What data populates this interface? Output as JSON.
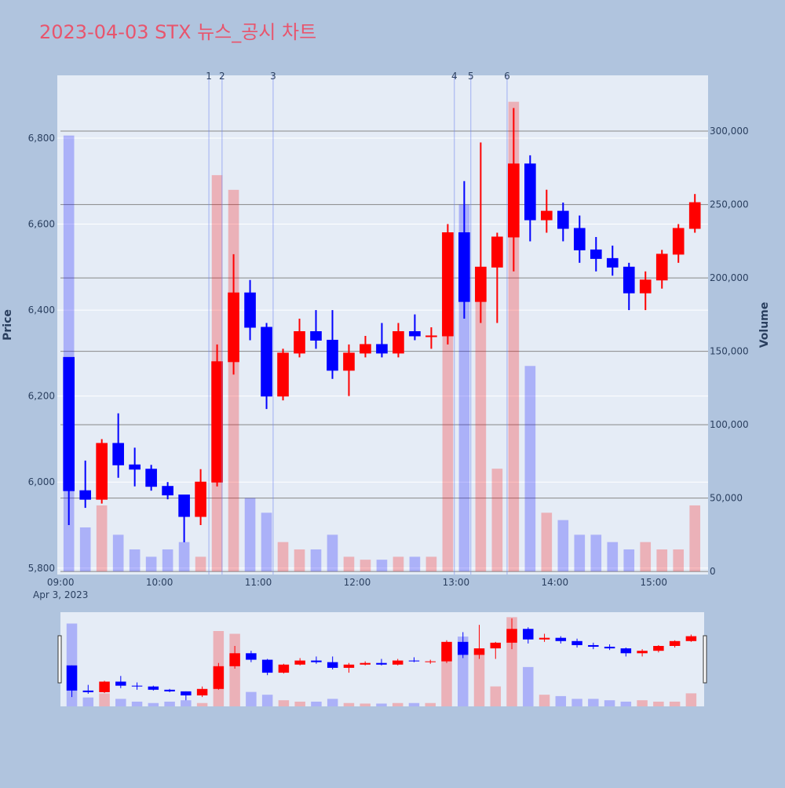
{
  "chart_data": {
    "type": "candlestick",
    "title": "2023-04-03 STX 뉴스_공시 차트",
    "y_title": "Price",
    "y2_title": "Volume",
    "date_label": "Apr 3, 2023",
    "x": [
      "09:00",
      "09:10",
      "09:20",
      "09:30",
      "09:40",
      "09:50",
      "10:00",
      "10:10",
      "10:20",
      "10:30",
      "10:40",
      "10:50",
      "11:00",
      "11:10",
      "11:20",
      "11:30",
      "11:40",
      "11:50",
      "12:00",
      "12:10",
      "12:20",
      "12:30",
      "12:40",
      "12:50",
      "13:00",
      "13:10",
      "13:20",
      "13:30",
      "13:40",
      "13:50",
      "14:00",
      "14:10",
      "14:20",
      "14:30",
      "14:40",
      "14:50",
      "15:00",
      "15:10",
      "15:20"
    ],
    "open": [
      6290,
      5980,
      5960,
      6090,
      6040,
      6030,
      5990,
      5970,
      5920,
      6000,
      6280,
      6440,
      6360,
      6200,
      6300,
      6350,
      6330,
      6260,
      6300,
      6320,
      6300,
      6350,
      6340,
      6340,
      6580,
      6420,
      6500,
      6570,
      6740,
      6610,
      6630,
      6590,
      6540,
      6520,
      6500,
      6440,
      6470,
      6530,
      6590
    ],
    "high": [
      6290,
      6050,
      6100,
      6160,
      6080,
      6040,
      6000,
      5970,
      6030,
      6320,
      6530,
      6470,
      6370,
      6310,
      6380,
      6400,
      6400,
      6320,
      6340,
      6370,
      6370,
      6390,
      6360,
      6600,
      6700,
      6790,
      6580,
      6870,
      6760,
      6680,
      6650,
      6620,
      6570,
      6550,
      6510,
      6490,
      6540,
      6600,
      6670
    ],
    "low": [
      5900,
      5940,
      5950,
      6010,
      5990,
      5980,
      5960,
      5860,
      5900,
      5990,
      6250,
      6330,
      6170,
      6190,
      6290,
      6310,
      6240,
      6200,
      6290,
      6290,
      6290,
      6330,
      6310,
      6320,
      6380,
      6370,
      6370,
      6490,
      6560,
      6580,
      6560,
      6510,
      6490,
      6480,
      6400,
      6400,
      6450,
      6510,
      6580
    ],
    "close": [
      5980,
      5960,
      6090,
      6040,
      6030,
      5990,
      5970,
      5920,
      6000,
      6280,
      6440,
      6360,
      6200,
      6300,
      6350,
      6330,
      6260,
      6300,
      6320,
      6300,
      6350,
      6340,
      6340,
      6580,
      6420,
      6500,
      6570,
      6740,
      6610,
      6630,
      6590,
      6540,
      6520,
      6500,
      6440,
      6470,
      6530,
      6590,
      6650
    ],
    "volume": [
      297000,
      30000,
      45000,
      25000,
      15000,
      10000,
      15000,
      20000,
      10000,
      270000,
      260000,
      50000,
      40000,
      20000,
      15000,
      15000,
      25000,
      10000,
      8000,
      8000,
      10000,
      10000,
      10000,
      210000,
      250000,
      200000,
      70000,
      320000,
      140000,
      40000,
      35000,
      25000,
      25000,
      20000,
      15000,
      20000,
      15000,
      15000,
      45000
    ],
    "increasing_color": "#ff0000",
    "decreasing_color": "#0000ff",
    "xlim": [
      "08:58",
      "15:33"
    ],
    "xticks": [
      "09:00",
      "10:00",
      "11:00",
      "12:00",
      "13:00",
      "14:00",
      "15:00"
    ],
    "ylim": [
      5785,
      6946
    ],
    "yticks": [
      {
        "value": 5800,
        "label": "5,800"
      },
      {
        "value": 6000,
        "label": "6,000"
      },
      {
        "value": 6200,
        "label": "6,200"
      },
      {
        "value": 6400,
        "label": "6,400"
      },
      {
        "value": 6600,
        "label": "6,600"
      },
      {
        "value": 6800,
        "label": "6,800"
      }
    ],
    "y2lim": [
      -2100,
      338000
    ],
    "y2ticks": [
      0,
      {
        "value": 50000,
        "label": "50,000"
      },
      {
        "value": 100000,
        "label": "100,000"
      },
      {
        "value": 150000,
        "label": "150,000"
      },
      {
        "value": 200000,
        "label": "200,000"
      },
      {
        "value": 250000,
        "label": "250,000"
      },
      {
        "value": 300000,
        "label": "300,000"
      }
    ],
    "news": [
      {
        "x": "10:30",
        "label": "1"
      },
      {
        "x": "10:38",
        "label": "2"
      },
      {
        "x": "11:09",
        "label": "3"
      },
      {
        "x": "12:59",
        "label": "4"
      },
      {
        "x": "13:09",
        "label": "5"
      },
      {
        "x": "13:31",
        "label": "6"
      }
    ],
    "grid": true,
    "rangeslider": true
  }
}
